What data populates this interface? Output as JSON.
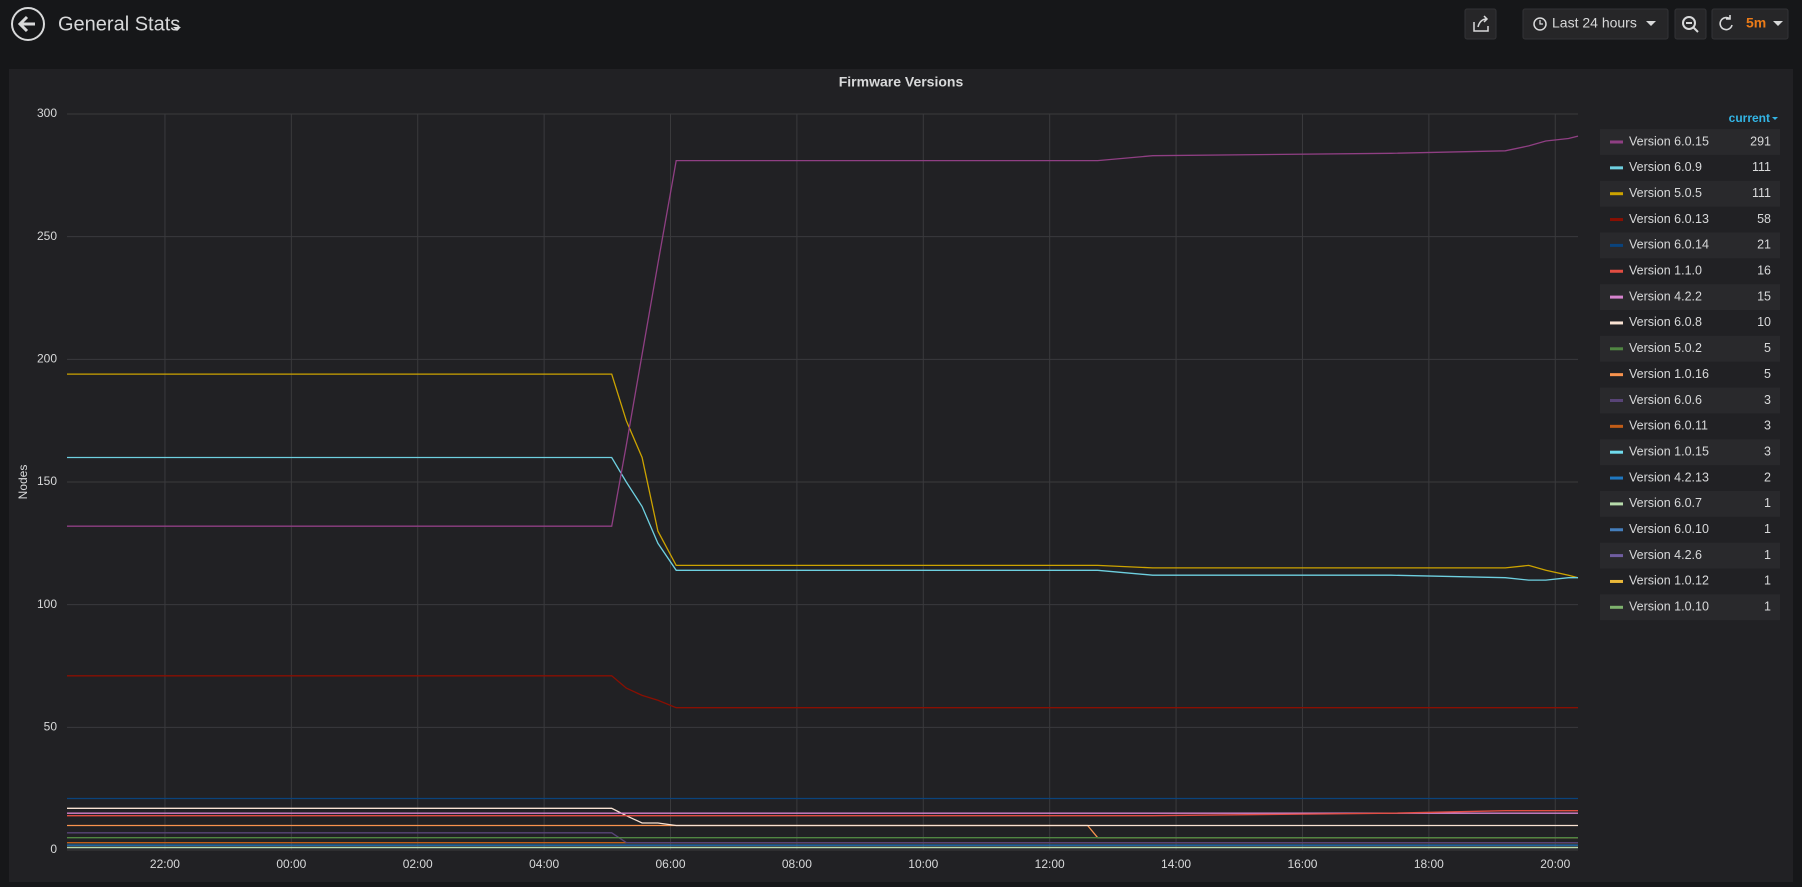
{
  "header": {
    "title": "General Stats",
    "time_range": "Last 24 hours",
    "refresh": "5m"
  },
  "chart_data": {
    "type": "line",
    "title": "Firmware Versions",
    "y_label": "Nodes",
    "legend_header": "current",
    "x": [
      20.45,
      29.07,
      29.3,
      29.55,
      29.8,
      30.09,
      36.6,
      36.76,
      37.63,
      41.4,
      43.21,
      43.58,
      43.85,
      44.21,
      44.36
    ],
    "xlim": [
      20.45,
      44.36
    ],
    "xticks": [
      {
        "value": 22,
        "label": "22:00"
      },
      {
        "value": 24,
        "label": "00:00"
      },
      {
        "value": 26,
        "label": "02:00"
      },
      {
        "value": 28,
        "label": "04:00"
      },
      {
        "value": 30,
        "label": "06:00"
      },
      {
        "value": 32,
        "label": "08:00"
      },
      {
        "value": 34,
        "label": "10:00"
      },
      {
        "value": 36,
        "label": "12:00"
      },
      {
        "value": 38,
        "label": "14:00"
      },
      {
        "value": 40,
        "label": "16:00"
      },
      {
        "value": 42,
        "label": "18:00"
      },
      {
        "value": 44,
        "label": "20:00"
      }
    ],
    "ylim": [
      0,
      300
    ],
    "yticks": [
      0,
      50,
      100,
      150,
      200,
      250,
      300
    ],
    "grid": true,
    "series": [
      {
        "name": "Version 6.0.15",
        "color": "#8f3f83",
        "values": [
          132,
          132,
          165,
          202,
          239,
          281,
          281,
          281,
          283,
          284,
          285,
          287,
          289,
          290,
          291
        ]
      },
      {
        "name": "Version 6.0.9",
        "color": "#6ed0e0",
        "values": [
          160,
          160,
          150,
          140,
          125,
          114,
          114,
          114,
          112,
          112,
          111,
          110,
          110,
          111,
          111
        ]
      },
      {
        "name": "Version 5.0.5",
        "color": "#cca300",
        "values": [
          194,
          194,
          175,
          160,
          130,
          116,
          116,
          116,
          115,
          115,
          115,
          116,
          114,
          112,
          111
        ]
      },
      {
        "name": "Version 6.0.13",
        "color": "#890f02",
        "values": [
          71,
          71,
          66,
          63,
          61,
          58,
          58,
          58,
          58,
          58,
          58,
          58,
          58,
          58,
          58
        ]
      },
      {
        "name": "Version 6.0.14",
        "color": "#0a437c",
        "values": [
          21,
          21,
          21,
          21,
          21,
          21,
          21,
          21,
          21,
          21,
          21,
          21,
          21,
          21,
          21
        ]
      },
      {
        "name": "Version 1.1.0",
        "color": "#e24d42",
        "values": [
          14,
          14,
          14,
          14,
          14,
          14,
          14,
          14,
          14,
          15,
          16,
          16,
          16,
          16,
          16
        ]
      },
      {
        "name": "Version 4.2.2",
        "color": "#d683ce",
        "values": [
          15,
          15,
          15,
          15,
          15,
          15,
          15,
          15,
          15,
          15,
          15,
          15,
          15,
          15,
          15
        ]
      },
      {
        "name": "Version 6.0.8",
        "color": "#f9e2d2",
        "values": [
          17,
          17,
          14,
          11,
          11,
          10,
          10,
          10,
          10,
          10,
          10,
          10,
          10,
          10,
          10
        ]
      },
      {
        "name": "Version 5.0.2",
        "color": "#508642",
        "values": [
          5,
          5,
          5,
          5,
          5,
          5,
          5,
          5,
          5,
          5,
          5,
          5,
          5,
          5,
          5
        ]
      },
      {
        "name": "Version 1.0.16",
        "color": "#f9934e",
        "values": [
          10,
          10,
          10,
          10,
          10,
          10,
          10,
          5,
          5,
          5,
          5,
          5,
          5,
          5,
          5
        ]
      },
      {
        "name": "Version 6.0.6",
        "color": "#584477",
        "values": [
          7,
          7,
          3,
          3,
          3,
          3,
          3,
          3,
          3,
          3,
          3,
          3,
          3,
          3,
          3
        ]
      },
      {
        "name": "Version 6.0.11",
        "color": "#c15c17",
        "values": [
          3,
          3,
          3,
          3,
          3,
          3,
          3,
          3,
          3,
          3,
          3,
          3,
          3,
          3,
          3
        ]
      },
      {
        "name": "Version 1.0.15",
        "color": "#70dbed",
        "values": [
          3,
          3,
          3,
          3,
          3,
          3,
          3,
          3,
          3,
          3,
          3,
          3,
          3,
          3,
          3
        ]
      },
      {
        "name": "Version 4.2.13",
        "color": "#1f78c1",
        "values": [
          2,
          2,
          2,
          2,
          2,
          2,
          2,
          2,
          2,
          2,
          2,
          2,
          2,
          2,
          2
        ]
      },
      {
        "name": "Version 6.0.7",
        "color": "#b7dbab",
        "values": [
          1,
          1,
          1,
          1,
          1,
          1,
          1,
          1,
          1,
          1,
          1,
          1,
          1,
          1,
          1
        ]
      },
      {
        "name": "Version 6.0.10",
        "color": "#447ebc",
        "values": [
          1,
          1,
          1,
          1,
          1,
          1,
          1,
          1,
          1,
          1,
          1,
          1,
          1,
          1,
          1
        ]
      },
      {
        "name": "Version 4.2.6",
        "color": "#705da0",
        "values": [
          1,
          1,
          1,
          1,
          1,
          1,
          1,
          1,
          1,
          1,
          1,
          1,
          1,
          1,
          1
        ]
      },
      {
        "name": "Version 1.0.12",
        "color": "#eab839",
        "values": [
          1,
          1,
          1,
          1,
          1,
          1,
          1,
          1,
          1,
          1,
          1,
          1,
          1,
          1,
          1
        ]
      },
      {
        "name": "Version 1.0.10",
        "color": "#7eb26d",
        "values": [
          1,
          1,
          1,
          1,
          1,
          1,
          1,
          1,
          1,
          1,
          1,
          1,
          1,
          1,
          1
        ]
      }
    ]
  }
}
